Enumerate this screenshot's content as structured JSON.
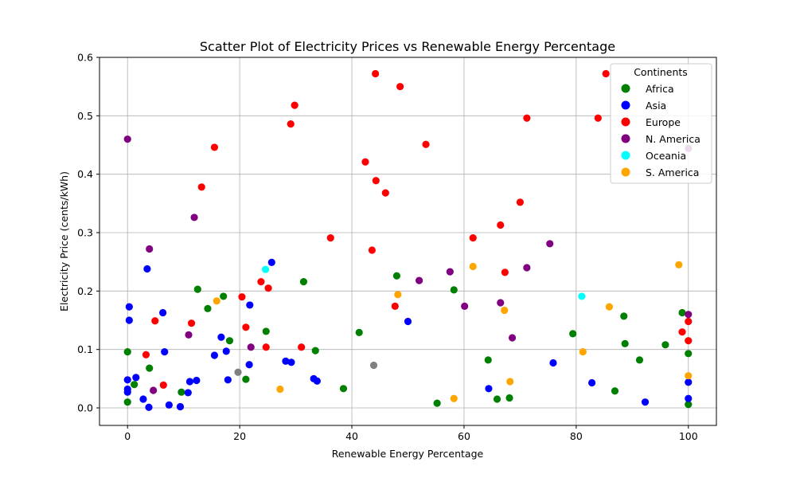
{
  "chart_data": {
    "type": "scatter",
    "title": "Scatter Plot of Electricity Prices vs Renewable Energy Percentage",
    "xlabel": "Renewable Energy Percentage",
    "ylabel": "Electricity Price (cents/kWh)",
    "xlim": [
      -5,
      105
    ],
    "ylim": [
      -0.03,
      0.6
    ],
    "xticks": [
      0,
      20,
      40,
      60,
      80,
      100
    ],
    "yticks": [
      0.0,
      0.1,
      0.2,
      0.3,
      0.4,
      0.5,
      0.6
    ],
    "xtick_labels": [
      "0",
      "20",
      "40",
      "60",
      "80",
      "100"
    ],
    "ytick_labels": [
      "0.0",
      "0.1",
      "0.2",
      "0.3",
      "0.4",
      "0.5",
      "0.6"
    ],
    "grid": true,
    "legend": {
      "title": "Continents",
      "placement": "top-right"
    },
    "series": [
      {
        "name": "Africa",
        "color": "#008000",
        "points": [
          [
            0.0,
            0.096
          ],
          [
            0.0,
            0.01
          ],
          [
            1.2,
            0.04
          ],
          [
            3.9,
            0.068
          ],
          [
            9.6,
            0.027
          ],
          [
            12.5,
            0.203
          ],
          [
            14.3,
            0.17
          ],
          [
            17.1,
            0.191
          ],
          [
            18.2,
            0.115
          ],
          [
            21.1,
            0.049
          ],
          [
            24.7,
            0.131
          ],
          [
            31.4,
            0.216
          ],
          [
            33.5,
            0.098
          ],
          [
            38.5,
            0.033
          ],
          [
            41.3,
            0.129
          ],
          [
            48.0,
            0.226
          ],
          [
            55.2,
            0.008
          ],
          [
            58.2,
            0.202
          ],
          [
            64.3,
            0.082
          ],
          [
            65.9,
            0.015
          ],
          [
            68.1,
            0.017
          ],
          [
            79.4,
            0.127
          ],
          [
            86.9,
            0.029
          ],
          [
            88.5,
            0.157
          ],
          [
            88.7,
            0.11
          ],
          [
            91.3,
            0.082
          ],
          [
            95.9,
            0.108
          ],
          [
            98.9,
            0.163
          ],
          [
            100.0,
            0.093
          ],
          [
            100.0,
            0.006
          ]
        ]
      },
      {
        "name": "Asia",
        "color": "#0000ff",
        "points": [
          [
            0.0,
            0.048
          ],
          [
            0.0,
            0.032
          ],
          [
            0.0,
            0.027
          ],
          [
            0.3,
            0.173
          ],
          [
            0.3,
            0.15
          ],
          [
            1.5,
            0.052
          ],
          [
            2.8,
            0.015
          ],
          [
            3.5,
            0.238
          ],
          [
            3.8,
            0.001
          ],
          [
            6.3,
            0.163
          ],
          [
            6.6,
            0.096
          ],
          [
            7.4,
            0.005
          ],
          [
            9.4,
            0.002
          ],
          [
            10.8,
            0.026
          ],
          [
            11.1,
            0.045
          ],
          [
            12.3,
            0.047
          ],
          [
            15.5,
            0.09
          ],
          [
            16.7,
            0.121
          ],
          [
            17.6,
            0.097
          ],
          [
            17.9,
            0.048
          ],
          [
            21.7,
            0.074
          ],
          [
            21.8,
            0.176
          ],
          [
            25.7,
            0.249
          ],
          [
            28.2,
            0.08
          ],
          [
            29.2,
            0.078
          ],
          [
            33.2,
            0.05
          ],
          [
            33.8,
            0.046
          ],
          [
            50.0,
            0.148
          ],
          [
            64.4,
            0.033
          ],
          [
            75.9,
            0.077
          ],
          [
            82.8,
            0.043
          ],
          [
            92.3,
            0.01
          ],
          [
            100.0,
            0.044
          ],
          [
            100.0,
            0.016
          ]
        ]
      },
      {
        "name": "Europe",
        "color": "#ff0000",
        "points": [
          [
            3.3,
            0.091
          ],
          [
            4.9,
            0.149
          ],
          [
            6.4,
            0.039
          ],
          [
            11.4,
            0.145
          ],
          [
            13.2,
            0.378
          ],
          [
            15.5,
            0.446
          ],
          [
            20.4,
            0.19
          ],
          [
            21.1,
            0.138
          ],
          [
            23.8,
            0.216
          ],
          [
            24.7,
            0.104
          ],
          [
            25.1,
            0.205
          ],
          [
            29.1,
            0.486
          ],
          [
            29.8,
            0.518
          ],
          [
            31.0,
            0.104
          ],
          [
            36.2,
            0.291
          ],
          [
            42.4,
            0.421
          ],
          [
            43.6,
            0.27
          ],
          [
            44.2,
            0.572
          ],
          [
            44.3,
            0.389
          ],
          [
            46.0,
            0.368
          ],
          [
            47.7,
            0.174
          ],
          [
            48.6,
            0.55
          ],
          [
            53.2,
            0.451
          ],
          [
            61.6,
            0.291
          ],
          [
            66.5,
            0.313
          ],
          [
            67.3,
            0.232
          ],
          [
            70.0,
            0.352
          ],
          [
            71.2,
            0.496
          ],
          [
            83.9,
            0.496
          ],
          [
            85.3,
            0.572
          ],
          [
            98.9,
            0.13
          ],
          [
            100.0,
            0.148
          ],
          [
            100.0,
            0.115
          ]
        ]
      },
      {
        "name": "N. America",
        "color": "#800080",
        "points": [
          [
            0.0,
            0.46
          ],
          [
            3.9,
            0.272
          ],
          [
            4.6,
            0.03
          ],
          [
            10.9,
            0.125
          ],
          [
            11.9,
            0.326
          ],
          [
            22.0,
            0.104
          ],
          [
            52.0,
            0.218
          ],
          [
            57.5,
            0.233
          ],
          [
            60.1,
            0.174
          ],
          [
            66.5,
            0.18
          ],
          [
            68.6,
            0.12
          ],
          [
            71.2,
            0.24
          ],
          [
            75.3,
            0.281
          ],
          [
            100.0,
            0.444
          ],
          [
            100.0,
            0.16
          ]
        ]
      },
      {
        "name": "Oceania",
        "color": "#00ffff",
        "points": [
          [
            24.6,
            0.237
          ],
          [
            81.0,
            0.191
          ]
        ]
      },
      {
        "name": "S. America",
        "color": "#ffa500",
        "points": [
          [
            15.9,
            0.183
          ],
          [
            27.2,
            0.032
          ],
          [
            48.2,
            0.194
          ],
          [
            58.2,
            0.016
          ],
          [
            61.6,
            0.242
          ],
          [
            67.2,
            0.167
          ],
          [
            68.2,
            0.045
          ],
          [
            81.2,
            0.096
          ],
          [
            85.9,
            0.173
          ],
          [
            98.3,
            0.245
          ],
          [
            100.0,
            0.055
          ]
        ]
      }
    ],
    "unlabeled_points": {
      "color": "#808080",
      "points": [
        [
          19.7,
          0.061
        ],
        [
          43.9,
          0.073
        ]
      ]
    }
  }
}
